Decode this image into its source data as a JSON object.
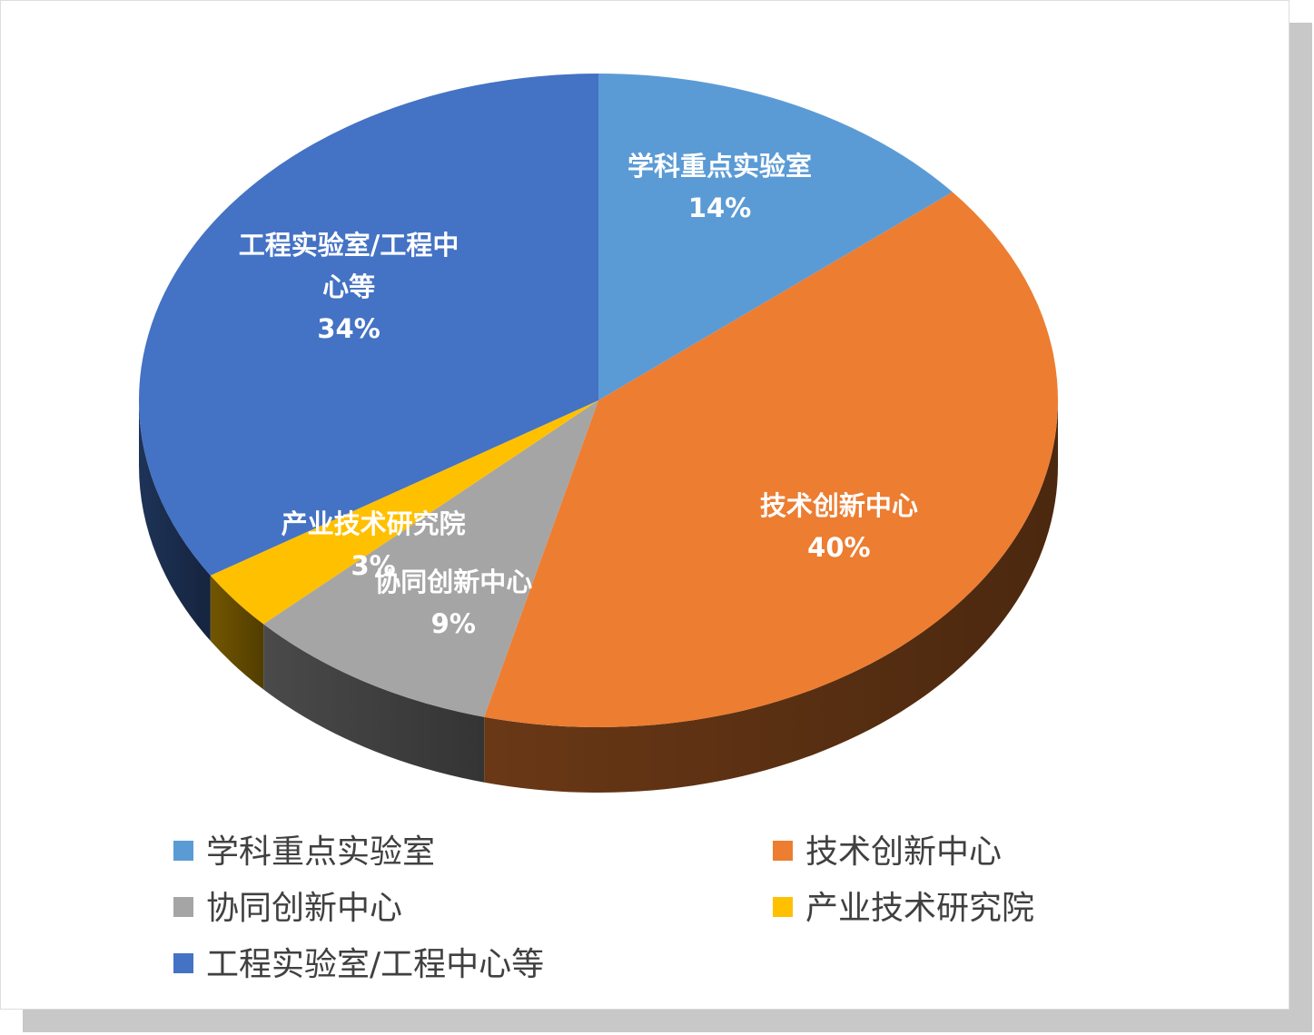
{
  "chart_data": {
    "type": "pie",
    "categories": [
      "学科重点实验室",
      "技术创新中心",
      "协同创新中心",
      "产业技术研究院",
      "工程实验室/工程中心等"
    ],
    "values": [
      14,
      40,
      9,
      3,
      34
    ],
    "value_labels": [
      "14%",
      "40%",
      "9%",
      "3%",
      "34%"
    ],
    "colors": [
      "#5b9bd5",
      "#ed7d31",
      "#a5a5a5",
      "#ffc000",
      "#4472c4"
    ],
    "legend": "bottom"
  }
}
